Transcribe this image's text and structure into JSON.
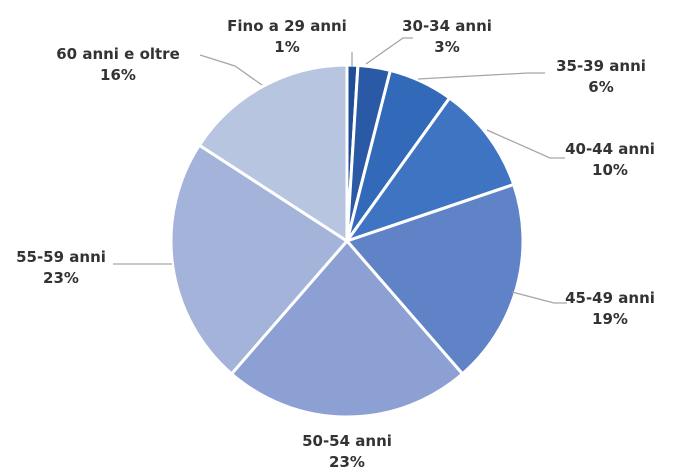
{
  "chart_data": {
    "type": "pie",
    "categories": [
      "Fino a 29 anni",
      "30-34 anni",
      "35-39 anni",
      "40-44 anni",
      "45-49 anni",
      "50-54 anni",
      "55-59 anni",
      "60 anni e oltre"
    ],
    "values": [
      1,
      3,
      6,
      10,
      19,
      23,
      23,
      16
    ],
    "value_labels": [
      "1%",
      "3%",
      "6%",
      "10%",
      "19%",
      "23%",
      "23%",
      "16%"
    ],
    "unit": "%",
    "start_angle_deg": 0,
    "direction": "clockwise",
    "legend": "none",
    "colors": [
      "#1f4e96",
      "#2a5aa6",
      "#3269b8",
      "#3f74c3",
      "#5f83c6",
      "#8ca0d3",
      "#a4b3da",
      "#b8c5e0"
    ]
  }
}
